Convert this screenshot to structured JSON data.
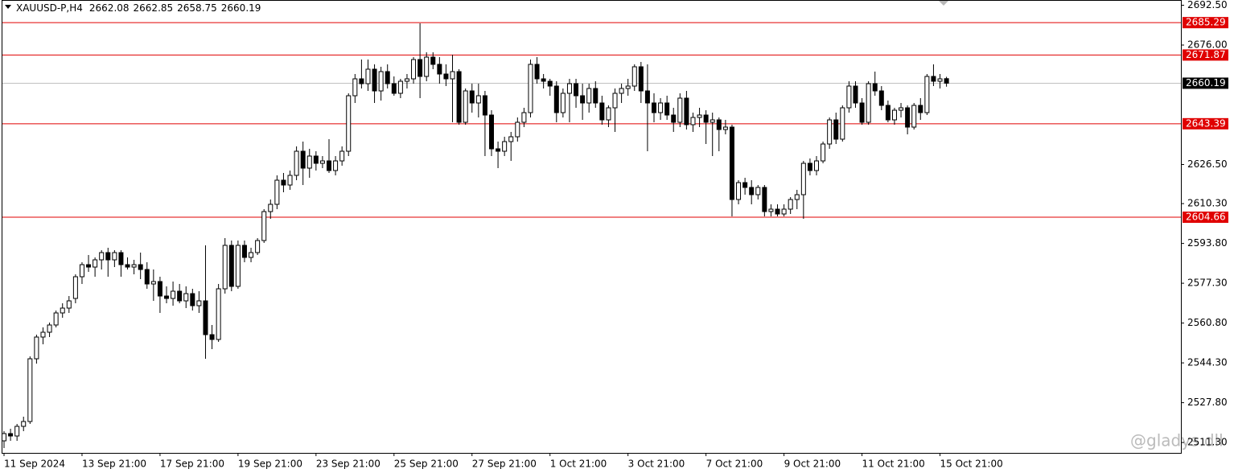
{
  "chart_data": {
    "type": "candlestick",
    "symbol": "XAUUSD-P,H4",
    "watermark": "@gladys.dll",
    "categories": [
      "11 Sep 2024",
      null,
      null,
      null,
      null,
      null,
      null,
      null,
      null,
      null,
      null,
      null,
      "13 Sep 21:00",
      null,
      null,
      null,
      null,
      null,
      null,
      null,
      null,
      null,
      null,
      null,
      "17 Sep 21:00",
      null,
      null,
      null,
      null,
      null,
      null,
      null,
      null,
      null,
      null,
      null,
      "19 Sep 21:00",
      null,
      null,
      null,
      null,
      null,
      null,
      null,
      null,
      null,
      null,
      null,
      "23 Sep 21:00",
      null,
      null,
      null,
      null,
      null,
      null,
      null,
      null,
      null,
      null,
      null,
      "25 Sep 21:00",
      null,
      null,
      null,
      null,
      null,
      null,
      null,
      null,
      null,
      null,
      null,
      "27 Sep 21:00",
      null,
      null,
      null,
      null,
      null,
      null,
      null,
      null,
      null,
      null,
      null,
      "1 Oct 21:00",
      null,
      null,
      null,
      null,
      null,
      null,
      null,
      null,
      null,
      null,
      null,
      "3 Oct 21:00",
      null,
      null,
      null,
      null,
      null,
      null,
      null,
      null,
      null,
      null,
      null,
      "7 Oct 21:00",
      null,
      null,
      null,
      null,
      null,
      null,
      null,
      null,
      null,
      null,
      null,
      "9 Oct 21:00",
      null,
      null,
      null,
      null,
      null,
      null,
      null,
      null,
      null,
      null,
      null,
      "11 Oct 21:00",
      null,
      null,
      null,
      null,
      null,
      null,
      null,
      null,
      null,
      null,
      null,
      "15 Oct 21:00",
      null
    ],
    "open": [
      2512,
      2515,
      2514,
      2518,
      2520,
      2546,
      2555,
      2557,
      2560,
      2565,
      2567,
      2571,
      2580,
      2585,
      2584,
      2587,
      2590,
      2587,
      2590,
      2585,
      2584,
      2585,
      2583,
      2577,
      2578,
      2572,
      2571,
      2574,
      2570,
      2573,
      2568,
      2570,
      2556,
      2554,
      2575,
      2593,
      2576,
      2593,
      2588,
      2590,
      2595,
      2607,
      2610,
      2620,
      2618,
      2622,
      2632,
      2625,
      2630,
      2627,
      2628,
      2624,
      2628,
      2632,
      2655,
      2662,
      2660,
      2666,
      2657,
      2665,
      2660,
      2656,
      2661,
      2662,
      2670,
      2663,
      2671,
      2668,
      2664,
      2662,
      2665,
      2644,
      2657,
      2652,
      2655,
      2647,
      2633,
      2632,
      2636,
      2638,
      2644,
      2648,
      2668,
      2662,
      2661,
      2659,
      2648,
      2656,
      2660,
      2655,
      2652,
      2658,
      2652,
      2645,
      2650,
      2656,
      2658,
      2659,
      2667,
      2657,
      2652,
      2648,
      2652,
      2647,
      2644,
      2654,
      2643,
      2646,
      2647,
      2644,
      2645,
      2641,
      2642,
      2612,
      2619,
      2617,
      2614,
      2617,
      2607,
      2608,
      2606,
      2608,
      2612,
      2614,
      2627,
      2624,
      2628,
      2635,
      2645,
      2637,
      2650,
      2659,
      2652,
      2644,
      2660,
      2657,
      2651,
      2645,
      2649,
      2650,
      2642,
      2651,
      2648,
      2663,
      2661,
      2662.08
    ],
    "high": [
      2516,
      2517,
      2519,
      2522,
      2547,
      2556,
      2559,
      2561,
      2566,
      2569,
      2572,
      2581,
      2586,
      2589,
      2588,
      2591,
      2592,
      2591,
      2591,
      2588,
      2587,
      2590,
      2586,
      2583,
      2580,
      2576,
      2578,
      2577,
      2576,
      2575,
      2574,
      2593,
      2560,
      2577,
      2596,
      2595,
      2595,
      2595,
      2592,
      2596,
      2608,
      2612,
      2622,
      2623,
      2624,
      2634,
      2636,
      2633,
      2632,
      2630,
      2637,
      2630,
      2634,
      2656,
      2664,
      2670,
      2670,
      2668,
      2667,
      2668,
      2663,
      2662,
      2664,
      2671,
      2685,
      2673,
      2673,
      2671,
      2668,
      2672,
      2666,
      2658,
      2660,
      2660,
      2657,
      2649,
      2636,
      2638,
      2640,
      2646,
      2650,
      2670,
      2671,
      2664,
      2662,
      2661,
      2658,
      2662,
      2662,
      2660,
      2660,
      2661,
      2655,
      2651,
      2658,
      2660,
      2662,
      2668,
      2669,
      2668,
      2656,
      2654,
      2655,
      2650,
      2656,
      2657,
      2648,
      2650,
      2649,
      2648,
      2646,
      2645,
      2643,
      2620,
      2621,
      2620,
      2618,
      2618,
      2610,
      2610,
      2610,
      2613,
      2616,
      2628,
      2629,
      2630,
      2636,
      2646,
      2648,
      2651,
      2661,
      2661,
      2654,
      2661,
      2665,
      2659,
      2653,
      2650,
      2652,
      2651,
      2652,
      2654,
      2664,
      2668,
      2664,
      2662.85
    ],
    "low": [
      2509,
      2512,
      2512,
      2516,
      2519,
      2544,
      2552,
      2555,
      2559,
      2563,
      2565,
      2569,
      2577,
      2582,
      2580,
      2583,
      2580,
      2584,
      2580,
      2583,
      2581,
      2579,
      2575,
      2570,
      2565,
      2569,
      2568,
      2569,
      2567,
      2566,
      2565,
      2546,
      2550,
      2553,
      2573,
      2574,
      2575,
      2586,
      2586,
      2589,
      2594,
      2604,
      2608,
      2615,
      2616,
      2620,
      2618,
      2621,
      2624,
      2625,
      2623,
      2622,
      2626,
      2630,
      2652,
      2658,
      2657,
      2652,
      2653,
      2658,
      2655,
      2654,
      2658,
      2660,
      2654,
      2661,
      2666,
      2660,
      2659,
      2644,
      2643,
      2643,
      2648,
      2646,
      2630,
      2630,
      2625,
      2630,
      2628,
      2636,
      2642,
      2646,
      2660,
      2658,
      2655,
      2644,
      2646,
      2644,
      2650,
      2645,
      2648,
      2650,
      2643,
      2642,
      2640,
      2652,
      2655,
      2657,
      2652,
      2632,
      2644,
      2645,
      2645,
      2640,
      2642,
      2641,
      2640,
      2642,
      2635,
      2630,
      2632,
      2639,
      2605,
      2610,
      2614,
      2610,
      2612,
      2605,
      2605,
      2605,
      2605,
      2606,
      2608,
      2604,
      2622,
      2622,
      2627,
      2633,
      2635,
      2636,
      2648,
      2650,
      2643,
      2643,
      2655,
      2649,
      2644,
      2643,
      2646,
      2639,
      2641,
      2645,
      2647,
      2659,
      2658,
      2658.75
    ],
    "close": [
      2515,
      2514,
      2518,
      2520,
      2546,
      2555,
      2557,
      2560,
      2565,
      2567,
      2570,
      2580,
      2585,
      2584,
      2587,
      2590,
      2587,
      2590,
      2585,
      2584,
      2585,
      2583,
      2577,
      2578,
      2572,
      2571,
      2574,
      2570,
      2573,
      2568,
      2570,
      2556,
      2554,
      2575,
      2593,
      2576,
      2593,
      2588,
      2590,
      2595,
      2607,
      2610,
      2620,
      2618,
      2622,
      2632,
      2625,
      2630,
      2627,
      2628,
      2624,
      2628,
      2632,
      2655,
      2662,
      2660,
      2666,
      2657,
      2665,
      2660,
      2656,
      2661,
      2662,
      2670,
      2663,
      2671,
      2668,
      2664,
      2662,
      2665,
      2644,
      2657,
      2652,
      2655,
      2647,
      2633,
      2632,
      2636,
      2638,
      2644,
      2648,
      2668,
      2662,
      2661,
      2659,
      2648,
      2656,
      2660,
      2655,
      2652,
      2658,
      2652,
      2645,
      2650,
      2656,
      2658,
      2659,
      2667,
      2657,
      2652,
      2648,
      2652,
      2647,
      2644,
      2654,
      2643,
      2646,
      2647,
      2644,
      2645,
      2641,
      2642,
      2612,
      2619,
      2617,
      2614,
      2617,
      2607,
      2608,
      2606,
      2608,
      2612,
      2614,
      2627,
      2624,
      2628,
      2635,
      2645,
      2637,
      2650,
      2659,
      2652,
      2644,
      2660,
      2657,
      2651,
      2645,
      2649,
      2650,
      2642,
      2651,
      2648,
      2663,
      2661,
      2662,
      2660.19
    ],
    "levels": [
      2685.29,
      2671.87,
      2643.39,
      2604.66
    ],
    "level_color": "#e00000",
    "up_color": "#ffffff",
    "down_color": "#000000",
    "ylim": [
      2507,
      2694.67
    ],
    "yticks": [
      {
        "value": 2692.5,
        "label": "2692.50"
      },
      {
        "value": 2676,
        "label": "2676.00"
      },
      {
        "value": 2626.5,
        "label": "2626.50"
      },
      {
        "value": 2610.3,
        "label": "2610.30"
      },
      {
        "value": 2593.8,
        "label": "2593.80"
      },
      {
        "value": 2577.3,
        "label": "2577.30"
      },
      {
        "value": 2560.8,
        "label": "2560.80"
      },
      {
        "value": 2544.3,
        "label": "2544.30"
      },
      {
        "value": 2527.8,
        "label": "2527.80"
      },
      {
        "value": 2511.3,
        "label": "2511.30"
      }
    ]
  }
}
